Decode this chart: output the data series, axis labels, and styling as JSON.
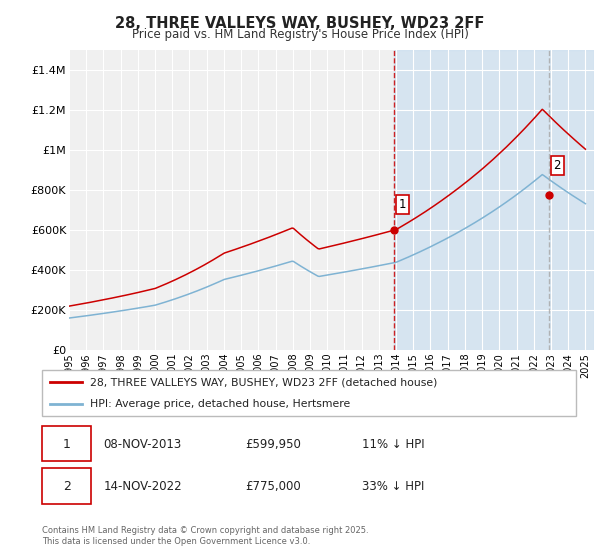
{
  "title": "28, THREE VALLEYS WAY, BUSHEY, WD23 2FF",
  "subtitle": "Price paid vs. HM Land Registry's House Price Index (HPI)",
  "bg_color": "#ffffff",
  "plot_bg_color": "#f0f0f0",
  "grid_color": "#ffffff",
  "hpi_color": "#7fb3d3",
  "price_color": "#cc0000",
  "sale1_date": 2013.86,
  "sale1_price": 599950,
  "sale2_date": 2022.87,
  "sale2_price": 775000,
  "shade_color": "#cce0f0",
  "vline1_color": "#cc0000",
  "vline2_color": "#aaaaaa",
  "legend_label_price": "28, THREE VALLEYS WAY, BUSHEY, WD23 2FF (detached house)",
  "legend_label_hpi": "HPI: Average price, detached house, Hertsmere",
  "table_row1": [
    "1",
    "08-NOV-2013",
    "£599,950",
    "11% ↓ HPI"
  ],
  "table_row2": [
    "2",
    "14-NOV-2022",
    "£775,000",
    "33% ↓ HPI"
  ],
  "footer": "Contains HM Land Registry data © Crown copyright and database right 2025.\nThis data is licensed under the Open Government Licence v3.0.",
  "ylim": [
    0,
    1500000
  ],
  "yticks": [
    0,
    200000,
    400000,
    600000,
    800000,
    1000000,
    1200000,
    1400000
  ],
  "ytick_labels": [
    "£0",
    "£200K",
    "£400K",
    "£600K",
    "£800K",
    "£1M",
    "£1.2M",
    "£1.4M"
  ],
  "xmin": 1995,
  "xmax": 2025.5
}
